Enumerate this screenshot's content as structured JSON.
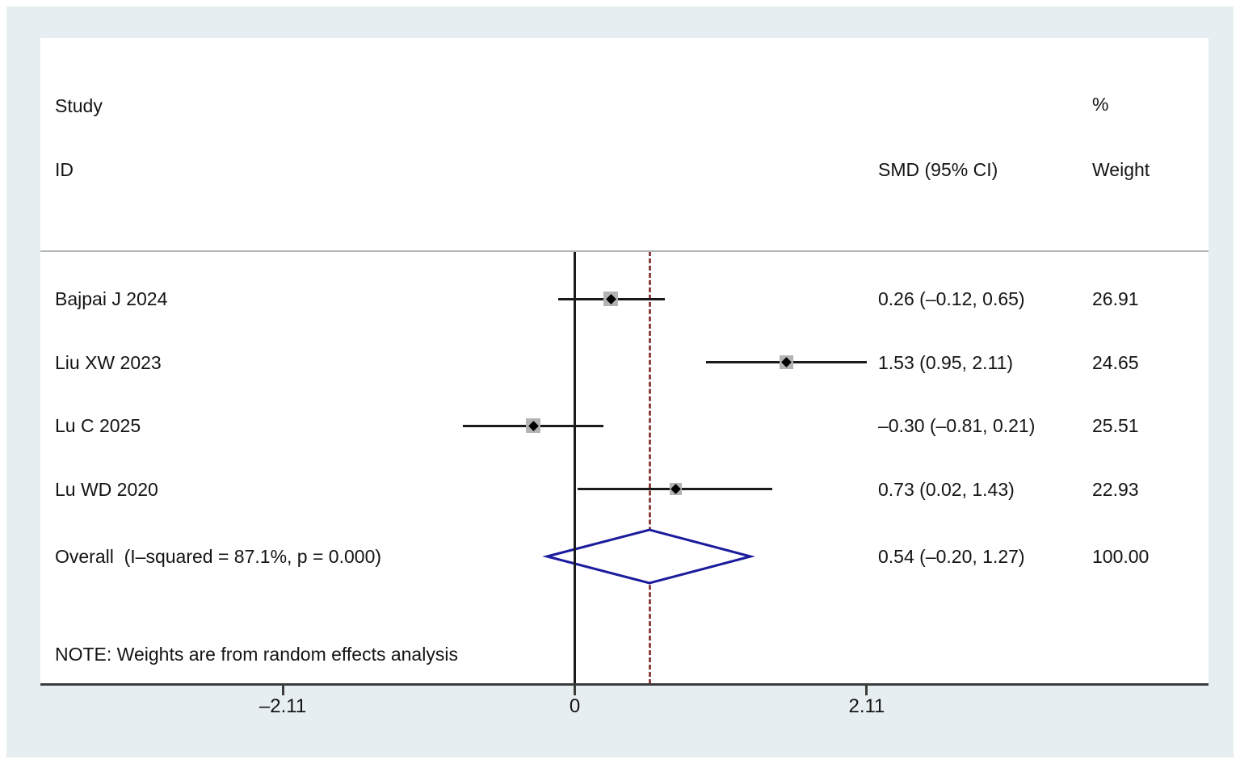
{
  "figure": {
    "header": {
      "study_line1": "Study",
      "study_line2": "ID",
      "percent": "%",
      "effect": "SMD (95% CI)",
      "weight": "Weight"
    },
    "note": "NOTE: Weights are from random effects analysis"
  },
  "chart_data": {
    "type": "forest",
    "effect_measure": "SMD",
    "studies": [
      {
        "id": "Bajpai J 2024",
        "smd": 0.26,
        "ci_low": -0.12,
        "ci_high": 0.65,
        "weight": 26.91,
        "effect_label": "0.26 (–0.12, 0.65)",
        "weight_label": "26.91"
      },
      {
        "id": "Liu XW 2023",
        "smd": 1.53,
        "ci_low": 0.95,
        "ci_high": 2.11,
        "weight": 24.65,
        "effect_label": "1.53 (0.95, 2.11)",
        "weight_label": "24.65"
      },
      {
        "id": "Lu C 2025",
        "smd": -0.3,
        "ci_low": -0.81,
        "ci_high": 0.21,
        "weight": 25.51,
        "effect_label": "–0.30 (–0.81, 0.21)",
        "weight_label": "25.51"
      },
      {
        "id": "Lu WD 2020",
        "smd": 0.73,
        "ci_low": 0.02,
        "ci_high": 1.43,
        "weight": 22.93,
        "effect_label": "0.73 (0.02, 1.43)",
        "weight_label": "22.93"
      }
    ],
    "overall": {
      "label": "Overall  (I–squared = 87.1%, p = 0.000)",
      "smd": 0.54,
      "ci_low": -0.2,
      "ci_high": 1.27,
      "weight": 100.0,
      "effect_label": "0.54 (–0.20, 1.27)",
      "weight_label": "100.00",
      "i_squared": "87.1%",
      "p_value": "0.000"
    },
    "note": "NOTE: Weights are from random effects analysis",
    "x_axis": {
      "ticks": [
        -2.11,
        0,
        2.11
      ],
      "tick_labels": [
        "–2.11",
        "0",
        "2.11"
      ]
    },
    "null_line_x": 0,
    "overall_dashed_line_x": 0.54,
    "grid": false,
    "legend_position": "none",
    "colors": {
      "frame_background": "#e7eef1",
      "plot_background": "#ffffff",
      "ci_line": "#1a1a1a",
      "weight_box": "#b3b3b3",
      "marker": "#000000",
      "diamond_stroke": "#1b1b9e",
      "dashed_line": "#8e4141",
      "axis_line": "#3c3c3c",
      "separator_line": "#b0b5b5",
      "text": "#141414"
    }
  }
}
